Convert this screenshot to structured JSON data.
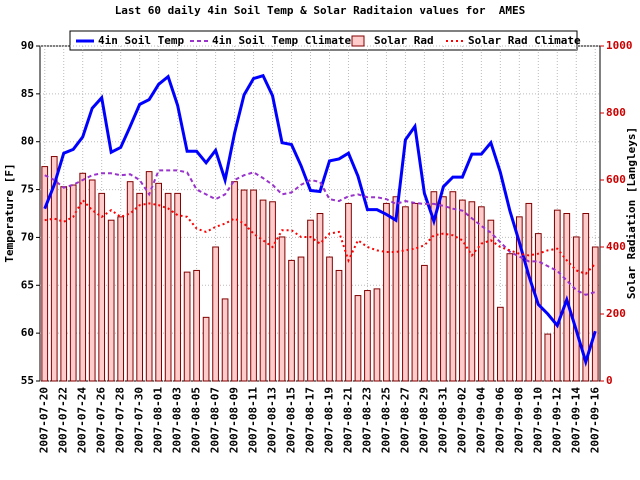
{
  "chart_data": {
    "type": "combo",
    "title": "Last 60 daily 4in Soil Temp & Solar Raditaion values for  AMES",
    "ylabel": "Temperature [F]",
    "y2label": "Solar Radiation [Langleys]",
    "categories": [
      "2007-07-20",
      null,
      "2007-07-22",
      null,
      "2007-07-24",
      null,
      "2007-07-26",
      null,
      "2007-07-28",
      null,
      "2007-07-30",
      null,
      "2007-08-01",
      null,
      "2007-08-03",
      null,
      "2007-08-05",
      null,
      "2007-08-07",
      null,
      "2007-08-09",
      null,
      "2007-08-11",
      null,
      "2007-08-13",
      null,
      "2007-08-15",
      null,
      "2007-08-17",
      null,
      "2007-08-19",
      null,
      "2007-08-21",
      null,
      "2007-08-23",
      null,
      "2007-08-25",
      null,
      "2007-08-27",
      null,
      "2007-08-29",
      null,
      "2007-08-31",
      null,
      "2007-09-02",
      null,
      "2007-09-04",
      null,
      "2007-09-06",
      null,
      "2007-09-08",
      null,
      "2007-09-10",
      null,
      "2007-09-12",
      null,
      "2007-09-14",
      null,
      "2007-09-16"
    ],
    "series": [
      {
        "name": "4in Soil Temp",
        "style": "solid",
        "color": "#0000ff",
        "axis": "y",
        "values": [
          73,
          75.5,
          78.8,
          79.2,
          80.5,
          83.5,
          84.6,
          78.9,
          79.4,
          81.6,
          83.9,
          84.4,
          86,
          86.8,
          83.8,
          79,
          79,
          77.8,
          79.1,
          76,
          80.9,
          84.9,
          86.6,
          86.9,
          84.8,
          79.9,
          79.7,
          77.5,
          74.9,
          74.8,
          78,
          78.2,
          78.8,
          76.4,
          72.9,
          72.9,
          72.4,
          71.8,
          80.2,
          81.6,
          74.6,
          71.7,
          75.3,
          76.3,
          76.3,
          78.7,
          78.7,
          79.9,
          76.8,
          72.8,
          69.5,
          66,
          63,
          62,
          60.8,
          63.5,
          60.3,
          57,
          60.2
        ]
      },
      {
        "name": "4in Soil Temp Climate",
        "style": "dashed",
        "color": "#9933cc",
        "axis": "y",
        "values": [
          76.5,
          76,
          75.2,
          75.5,
          76,
          76.5,
          76.7,
          76.7,
          76.5,
          76.6,
          76,
          74.5,
          77,
          77,
          77,
          76.8,
          75,
          74.5,
          74,
          74.5,
          76,
          76.5,
          76.8,
          76.2,
          75.5,
          74.5,
          74.7,
          75.5,
          76,
          75.8,
          74,
          73.8,
          74.3,
          74.5,
          74.2,
          74.2,
          74,
          73.5,
          73.8,
          73.6,
          73.5,
          73.5,
          73.3,
          73,
          72.8,
          72,
          71.2,
          70.5,
          69.5,
          68.5,
          68,
          67.5,
          67.5,
          67,
          66.5,
          65.5,
          64.5,
          64,
          64.3
        ]
      },
      {
        "name": "Solar Rad",
        "style": "bar",
        "color": "#ffcccc",
        "axis": "y2",
        "values": [
          640,
          670,
          580,
          585,
          620,
          600,
          560,
          480,
          490,
          595,
          560,
          625,
          590,
          560,
          560,
          325,
          330,
          190,
          400,
          245,
          595,
          570,
          570,
          540,
          535,
          430,
          360,
          370,
          480,
          500,
          370,
          330,
          530,
          255,
          270,
          275,
          530,
          550,
          520,
          530,
          345,
          565,
          550,
          565,
          540,
          535,
          520,
          480,
          220,
          380,
          490,
          530,
          440,
          140,
          510,
          500,
          430,
          500,
          400
        ]
      },
      {
        "name": "Solar Rad Climate",
        "style": "dotted",
        "color": "#ff0000",
        "axis": "y2",
        "values": [
          480,
          485,
          475,
          490,
          540,
          510,
          490,
          510,
          490,
          500,
          525,
          530,
          525,
          515,
          495,
          490,
          455,
          445,
          460,
          470,
          485,
          470,
          440,
          420,
          400,
          450,
          450,
          430,
          430,
          410,
          440,
          445,
          360,
          420,
          400,
          390,
          385,
          385,
          390,
          395,
          405,
          435,
          440,
          435,
          420,
          375,
          410,
          420,
          400,
          390,
          380,
          375,
          380,
          390,
          395,
          360,
          330,
          320,
          350
        ]
      }
    ],
    "ylim": [
      55,
      90
    ],
    "yticks": [
      55,
      60,
      65,
      70,
      75,
      80,
      85,
      90
    ],
    "y2lim": [
      0,
      1000
    ],
    "y2ticks": [
      0,
      200,
      400,
      600,
      800,
      1000
    ],
    "grid": true,
    "legend": "top"
  }
}
